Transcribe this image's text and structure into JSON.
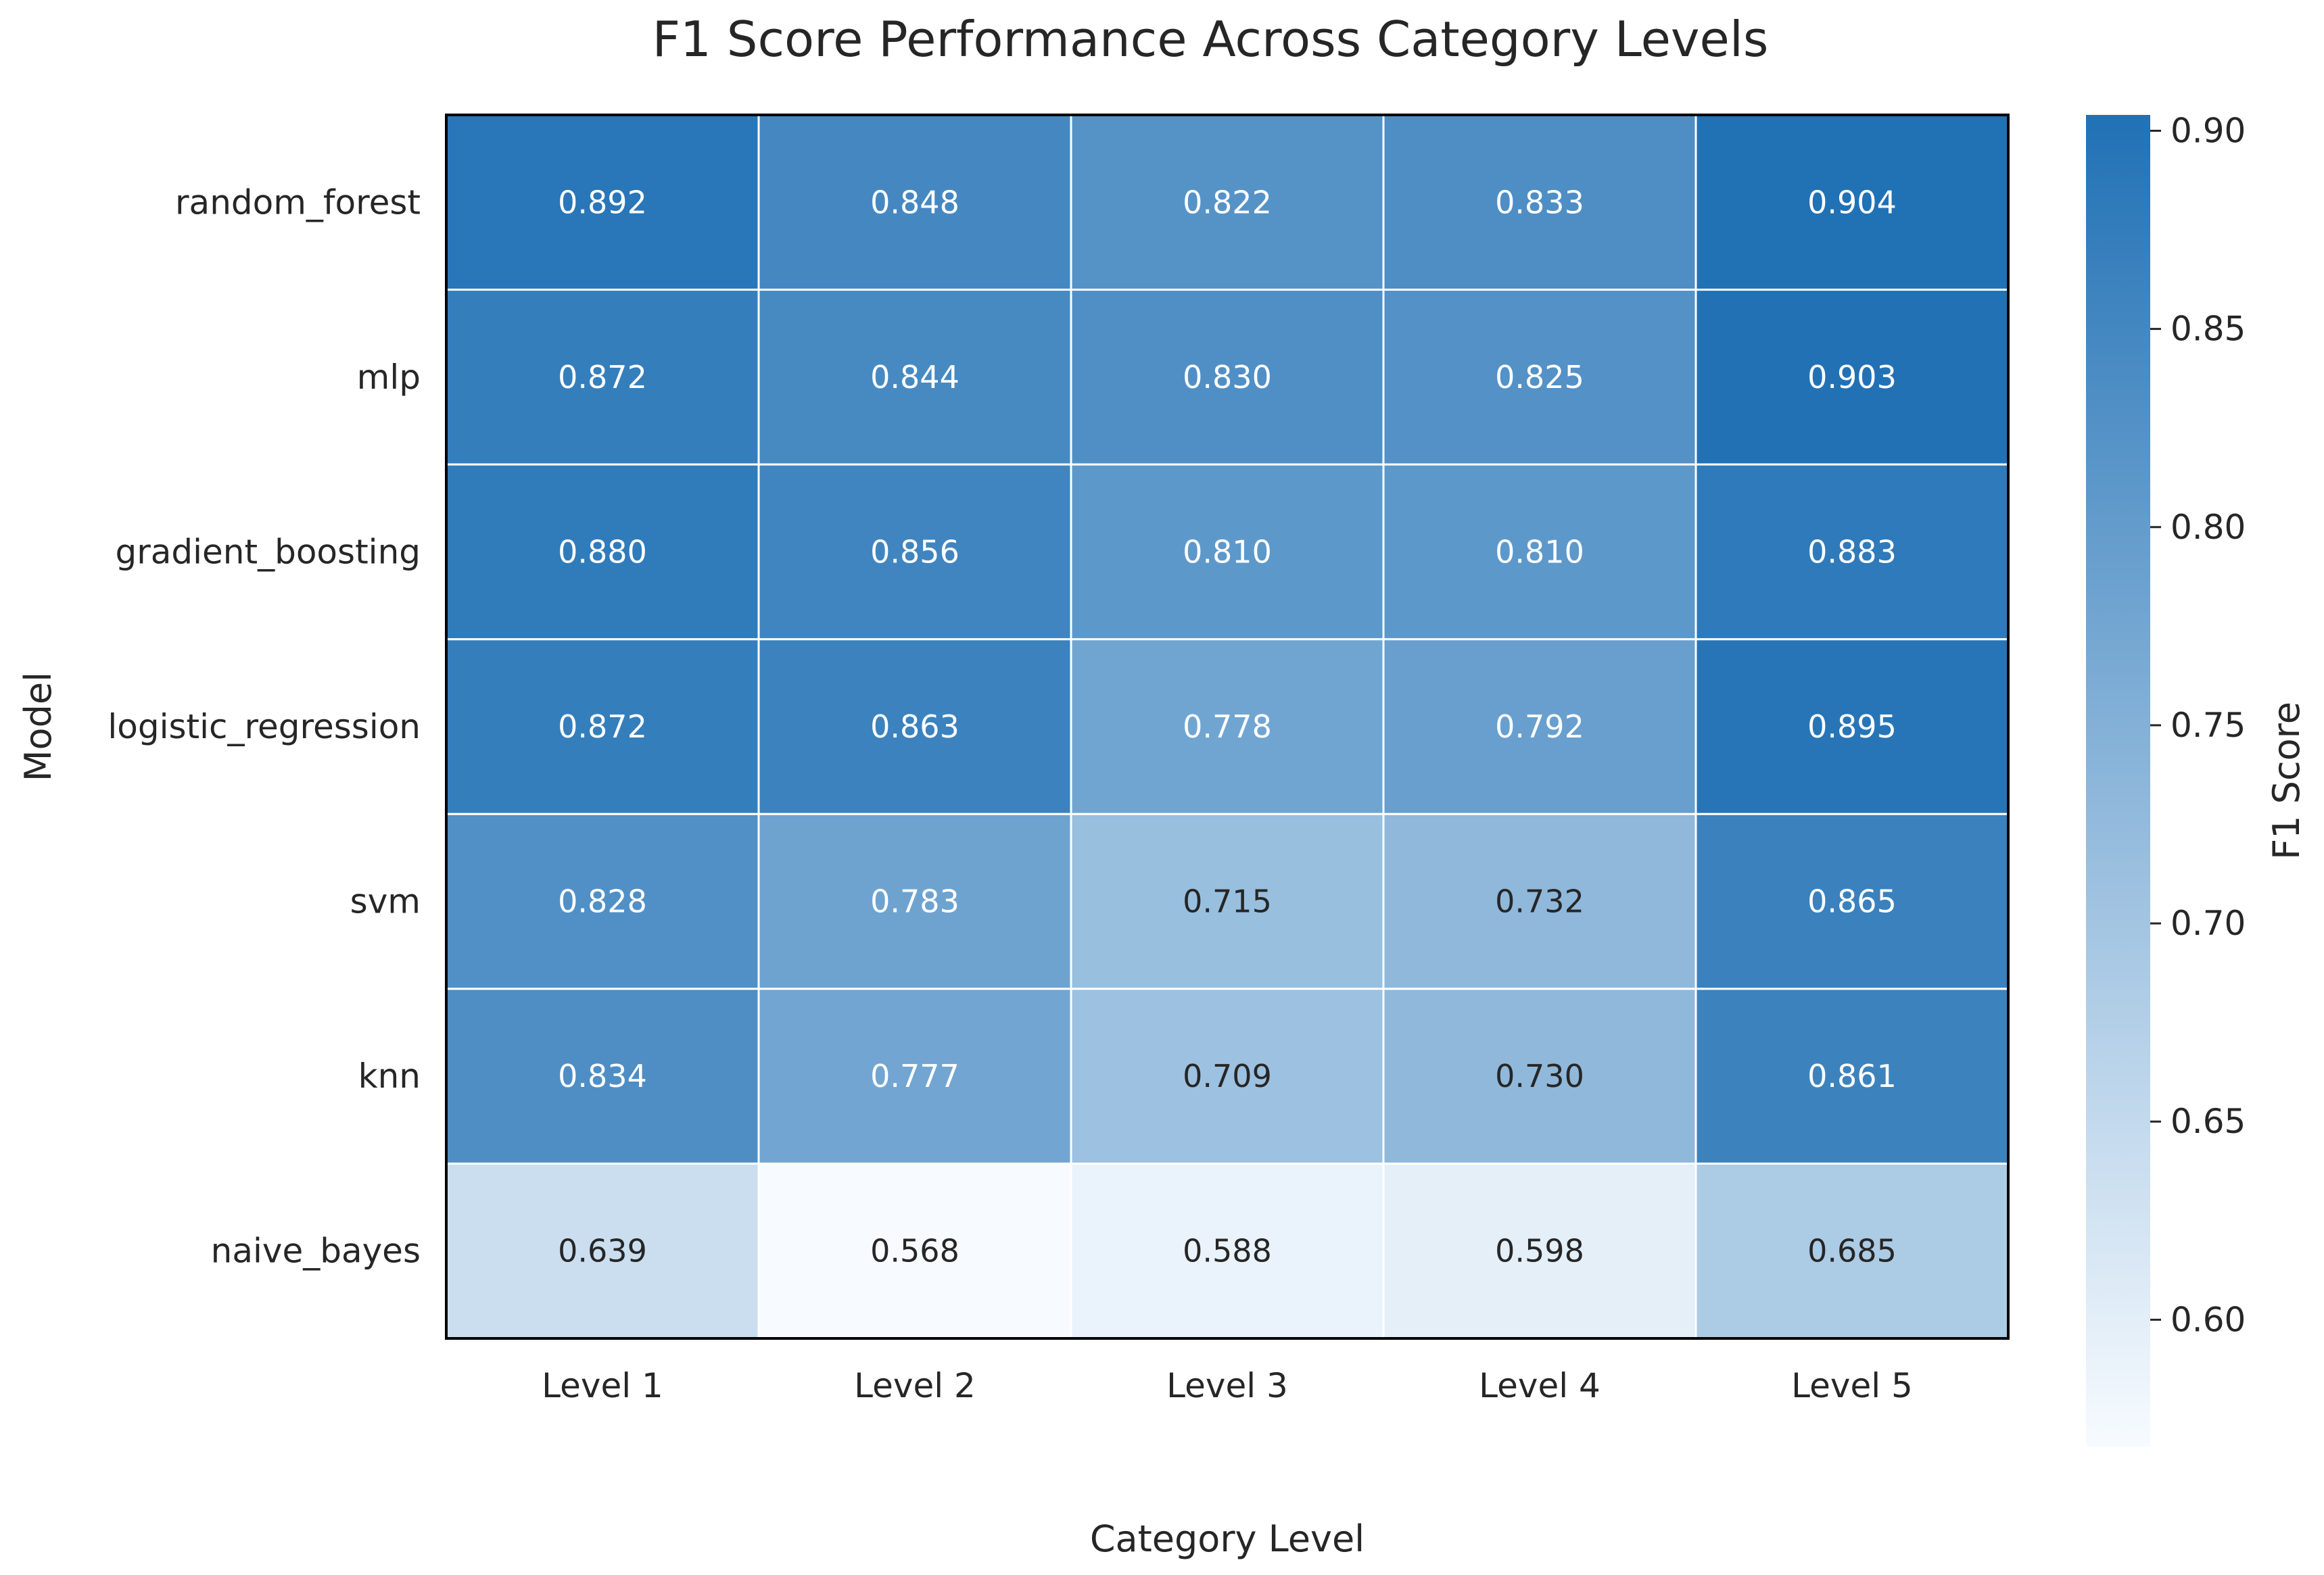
{
  "chart_data": {
    "type": "heatmap",
    "title": "F1 Score Performance Across Category Levels",
    "xlabel": "Category Level",
    "ylabel": "Model",
    "colorbar_label": "F1 Score",
    "x_categories": [
      "Level 1",
      "Level 2",
      "Level 3",
      "Level 4",
      "Level 5"
    ],
    "y_categories": [
      "random_forest",
      "mlp",
      "gradient_boosting",
      "logistic_regression",
      "svm",
      "knn",
      "naive_bayes"
    ],
    "values": [
      [
        0.892,
        0.848,
        0.822,
        0.833,
        0.904
      ],
      [
        0.872,
        0.844,
        0.83,
        0.825,
        0.903
      ],
      [
        0.88,
        0.856,
        0.81,
        0.81,
        0.883
      ],
      [
        0.872,
        0.863,
        0.778,
        0.792,
        0.895
      ],
      [
        0.828,
        0.783,
        0.715,
        0.732,
        0.865
      ],
      [
        0.834,
        0.777,
        0.709,
        0.73,
        0.861
      ],
      [
        0.639,
        0.568,
        0.588,
        0.598,
        0.685
      ]
    ],
    "value_labels": [
      [
        "0.892",
        "0.848",
        "0.822",
        "0.833",
        "0.904"
      ],
      [
        "0.872",
        "0.844",
        "0.830",
        "0.825",
        "0.903"
      ],
      [
        "0.880",
        "0.856",
        "0.810",
        "0.810",
        "0.883"
      ],
      [
        "0.872",
        "0.863",
        "0.778",
        "0.792",
        "0.895"
      ],
      [
        "0.828",
        "0.783",
        "0.715",
        "0.732",
        "0.865"
      ],
      [
        "0.834",
        "0.777",
        "0.709",
        "0.730",
        "0.861"
      ],
      [
        "0.639",
        "0.568",
        "0.588",
        "0.598",
        "0.685"
      ]
    ],
    "color_range": [
      0.568,
      0.904
    ],
    "colorbar_ticks": [
      0.6,
      0.65,
      0.7,
      0.75,
      0.8,
      0.85,
      0.9
    ],
    "colorbar_tick_labels": [
      "0.60",
      "0.65",
      "0.70",
      "0.75",
      "0.80",
      "0.85",
      "0.90"
    ],
    "colormap": {
      "low": "#f7fbff",
      "high": "#2171b5"
    },
    "text_colors": {
      "light": "#ffffff",
      "dark": "#262626"
    },
    "grid": false
  }
}
